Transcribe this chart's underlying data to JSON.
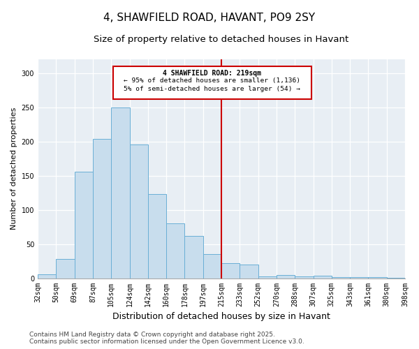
{
  "title": "4, SHAWFIELD ROAD, HAVANT, PO9 2SY",
  "subtitle": "Size of property relative to detached houses in Havant",
  "xlabel": "Distribution of detached houses by size in Havant",
  "ylabel": "Number of detached properties",
  "categories": [
    "32sqm",
    "50sqm",
    "69sqm",
    "87sqm",
    "105sqm",
    "124sqm",
    "142sqm",
    "160sqm",
    "178sqm",
    "197sqm",
    "215sqm",
    "233sqm",
    "252sqm",
    "270sqm",
    "288sqm",
    "307sqm",
    "325sqm",
    "343sqm",
    "361sqm",
    "380sqm",
    "398sqm"
  ],
  "values": [
    6,
    28,
    156,
    204,
    250,
    196,
    123,
    80,
    62,
    35,
    22,
    20,
    3,
    5,
    3,
    4,
    2,
    2,
    2,
    1
  ],
  "bar_color": "#c8dded",
  "bar_edge_color": "#6aafd6",
  "vline_label": "4 SHAWFIELD ROAD: 219sqm",
  "annotation_line1": "← 95% of detached houses are smaller (1,136)",
  "annotation_line2": "5% of semi-detached houses are larger (54) →",
  "vline_color": "#cc0000",
  "annotation_box_edge_color": "#cc0000",
  "footer_line1": "Contains HM Land Registry data © Crown copyright and database right 2025.",
  "footer_line2": "Contains public sector information licensed under the Open Government Licence v3.0.",
  "ylim": [
    0,
    320
  ],
  "yticks": [
    0,
    50,
    100,
    150,
    200,
    250,
    300
  ],
  "background_color": "#e8eef4",
  "title_fontsize": 11,
  "subtitle_fontsize": 9.5,
  "xlabel_fontsize": 9,
  "ylabel_fontsize": 8,
  "tick_fontsize": 7,
  "footer_fontsize": 6.5
}
